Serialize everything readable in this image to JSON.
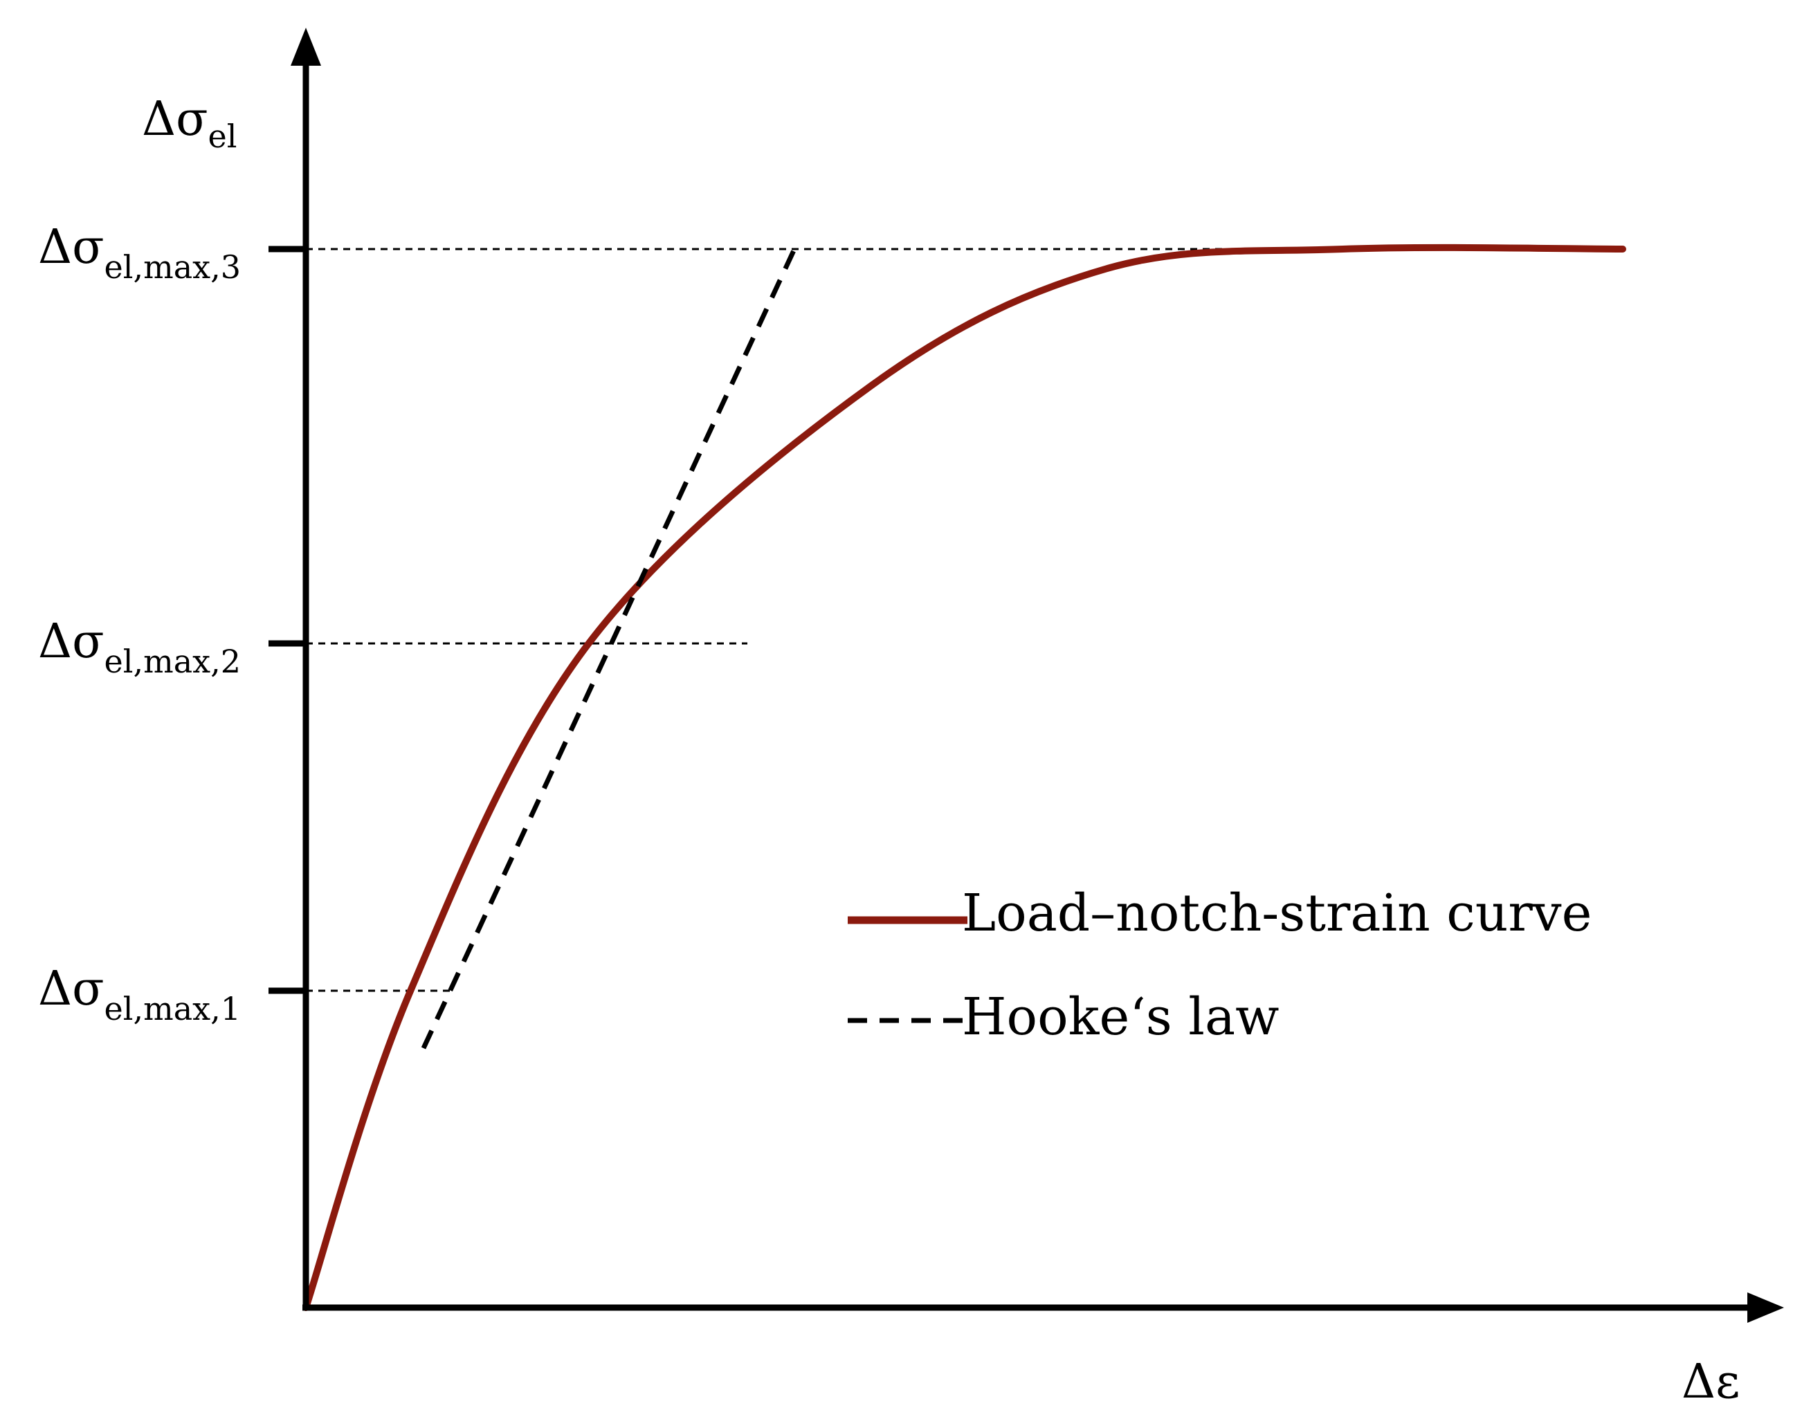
{
  "chart_data": {
    "type": "line",
    "ylabel": {
      "main": "Δσ",
      "sub": "el"
    },
    "xlabel": "Δε",
    "yticks": [
      {
        "value": 1,
        "main": "Δσ",
        "sub": "el,max,1"
      },
      {
        "value": 2,
        "main": "Δσ",
        "sub": "el,max,2"
      },
      {
        "value": 3,
        "main": "Δσ",
        "sub": "el,max,3"
      }
    ],
    "series": [
      {
        "name": "Load–notch-strain curve",
        "style": "solid",
        "color": "#8b1a0e",
        "x": [
          0,
          0.111,
          0.3,
          0.6,
          0.849,
          1.1,
          1.397
        ],
        "y": [
          0,
          1,
          2,
          2.654,
          2.95,
          3.084,
          3.1
        ]
      },
      {
        "name": "Hooke‘s law",
        "style": "dashed",
        "color": "#000000",
        "x": [
          0.101,
          0.37
        ],
        "y": [
          0.66,
          3.1
        ]
      }
    ],
    "axes": {
      "arrows": true,
      "x_values_shown": false,
      "y_values_shown": false
    },
    "legend": {
      "position": "center-right"
    }
  }
}
